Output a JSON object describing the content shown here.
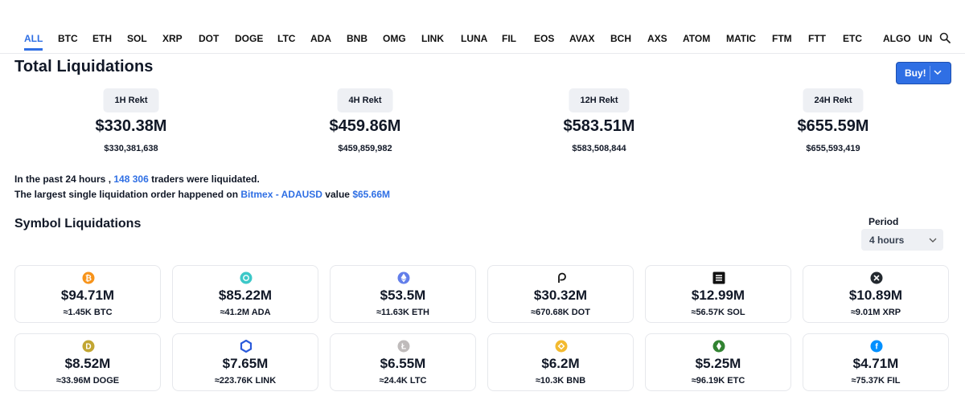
{
  "tabs": [
    "ALL",
    "BTC",
    "ETH",
    "SOL",
    "XRP",
    "DOT",
    "DOGE",
    "LTC",
    "ADA",
    "BNB",
    "OMG",
    "LINK",
    "LUNA",
    "FIL",
    "EOS",
    "AVAX",
    "BCH",
    "AXS",
    "ATOM",
    "MATIC",
    "FTM",
    "FTT",
    "ETC",
    "ALGO",
    "UNI"
  ],
  "active_tab": "ALL",
  "total": {
    "title": "Total Liquidations",
    "buy_label": "Buy!",
    "blocks": [
      {
        "label": "1H Rekt",
        "big": "$330.38M",
        "exact": "$330,381,638"
      },
      {
        "label": "4H Rekt",
        "big": "$459.86M",
        "exact": "$459,859,982"
      },
      {
        "label": "12H Rekt",
        "big": "$583.51M",
        "exact": "$583,508,844"
      },
      {
        "label": "24H Rekt",
        "big": "$655.59M",
        "exact": "$655,593,419"
      }
    ]
  },
  "summary": {
    "line1_pre": "In the past 24 hours , ",
    "traders": "148 306",
    "line1_post": " traders were liquidated.",
    "line2_pre": "The largest single liquidation order happened on ",
    "exchange": "Bitmex - ADAUSD",
    "line2_mid": " value ",
    "value": "$65.66M"
  },
  "symbols": {
    "title": "Symbol Liquidations",
    "period_label": "Period",
    "period_value": "4 hours",
    "cards": [
      {
        "coin": "BTC",
        "icon": "bitcoin-icon",
        "color": "#f7931a",
        "usd": "$94.71M",
        "amount": "≈1.45K BTC"
      },
      {
        "coin": "ADA",
        "icon": "cardano-icon",
        "color": "#3cc8c8",
        "usd": "$85.22M",
        "amount": "≈41.2M ADA"
      },
      {
        "coin": "ETH",
        "icon": "ethereum-icon",
        "color": "#627eea",
        "usd": "$53.5M",
        "amount": "≈11.63K ETH"
      },
      {
        "coin": "DOT",
        "icon": "polkadot-icon",
        "color": "#111111",
        "usd": "$30.32M",
        "amount": "≈670.68K DOT"
      },
      {
        "coin": "SOL",
        "icon": "solana-icon",
        "color": "#111111",
        "usd": "$12.99M",
        "amount": "≈56.57K SOL"
      },
      {
        "coin": "XRP",
        "icon": "xrp-icon",
        "color": "#23292f",
        "usd": "$10.89M",
        "amount": "≈9.01M XRP"
      },
      {
        "coin": "DOGE",
        "icon": "dogecoin-icon",
        "color": "#c2a633",
        "usd": "$8.52M",
        "amount": "≈33.96M DOGE"
      },
      {
        "coin": "LINK",
        "icon": "chainlink-icon",
        "color": "#2a5ada",
        "usd": "$7.65M",
        "amount": "≈223.76K LINK"
      },
      {
        "coin": "LTC",
        "icon": "litecoin-icon",
        "color": "#bfbbbb",
        "usd": "$6.55M",
        "amount": "≈24.4K LTC"
      },
      {
        "coin": "BNB",
        "icon": "bnb-icon",
        "color": "#f3ba2f",
        "usd": "$6.2M",
        "amount": "≈10.3K BNB"
      },
      {
        "coin": "ETC",
        "icon": "ethereum-classic-icon",
        "color": "#328332",
        "usd": "$5.25M",
        "amount": "≈96.19K ETC"
      },
      {
        "coin": "FIL",
        "icon": "filecoin-icon",
        "color": "#0090ff",
        "usd": "$4.71M",
        "amount": "≈75.37K FIL"
      }
    ]
  },
  "colors": {
    "accent": "#2f6fe4",
    "badge_bg": "#eef0f4",
    "card_border": "#e6e8ec"
  }
}
